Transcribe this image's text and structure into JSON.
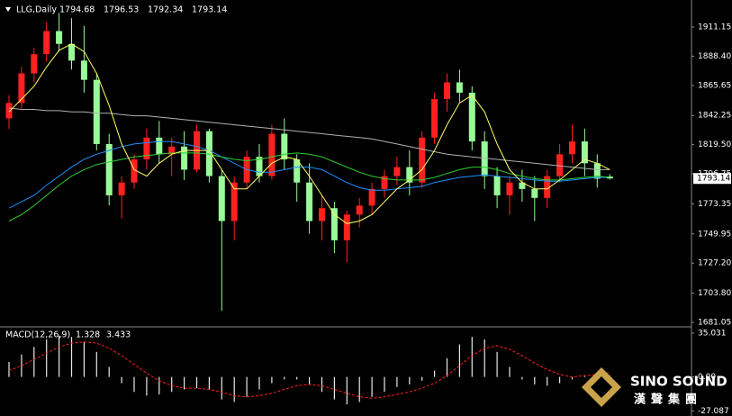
{
  "chart_data": [
    {
      "type": "candlestick",
      "title": "LLG,Daily",
      "header_values": [
        1794.68,
        1796.53,
        1792.34,
        1793.14
      ],
      "up_color": "#ff2020",
      "down_color": "#98fb98",
      "open": [
        1840,
        1852,
        1875,
        1890,
        1908,
        1898,
        1885,
        1870,
        1820,
        1780,
        1790,
        1808,
        1825,
        1812,
        1818,
        1800,
        1830,
        1795,
        1760,
        1790,
        1810,
        1795,
        1828,
        1808,
        1790,
        1760,
        1770,
        1745,
        1765,
        1772,
        1785,
        1795,
        1802,
        1790,
        1825,
        1855,
        1868,
        1860,
        1822,
        1795,
        1780,
        1790,
        1785,
        1778,
        1795,
        1812,
        1822,
        1805,
        1794.68
      ],
      "high": [
        1858,
        1880,
        1895,
        1915,
        1922,
        1918,
        1912,
        1875,
        1828,
        1795,
        1812,
        1832,
        1838,
        1825,
        1830,
        1835,
        1832,
        1800,
        1795,
        1815,
        1820,
        1835,
        1840,
        1812,
        1805,
        1780,
        1775,
        1768,
        1778,
        1790,
        1800,
        1810,
        1815,
        1830,
        1860,
        1875,
        1878,
        1865,
        1830,
        1802,
        1795,
        1800,
        1795,
        1800,
        1820,
        1835,
        1832,
        1812,
        1796.53
      ],
      "low": [
        1832,
        1848,
        1868,
        1884,
        1892,
        1878,
        1860,
        1815,
        1772,
        1762,
        1785,
        1800,
        1805,
        1795,
        1792,
        1798,
        1790,
        1690,
        1745,
        1785,
        1790,
        1792,
        1800,
        1775,
        1750,
        1745,
        1735,
        1728,
        1755,
        1765,
        1778,
        1788,
        1780,
        1786,
        1820,
        1845,
        1852,
        1815,
        1785,
        1770,
        1765,
        1775,
        1760,
        1770,
        1790,
        1805,
        1795,
        1786,
        1792.34
      ],
      "close": [
        1852,
        1875,
        1890,
        1908,
        1898,
        1885,
        1870,
        1820,
        1780,
        1790,
        1808,
        1825,
        1812,
        1818,
        1800,
        1830,
        1795,
        1760,
        1790,
        1810,
        1795,
        1828,
        1808,
        1790,
        1760,
        1770,
        1745,
        1765,
        1772,
        1785,
        1795,
        1802,
        1790,
        1825,
        1855,
        1868,
        1860,
        1822,
        1795,
        1780,
        1790,
        1785,
        1778,
        1795,
        1812,
        1822,
        1805,
        1793,
        1793.14
      ],
      "lines": [
        {
          "color": "#b0b0b0",
          "values": [
            1848,
            1847,
            1847,
            1846,
            1846,
            1845,
            1845,
            1844,
            1844,
            1843,
            1842,
            1842,
            1841,
            1840,
            1839,
            1838,
            1837,
            1836,
            1835,
            1834,
            1833,
            1832,
            1831,
            1830,
            1829,
            1828,
            1827,
            1826,
            1825,
            1824,
            1822,
            1820,
            1818,
            1816,
            1814,
            1812,
            1811,
            1810,
            1809,
            1808,
            1807,
            1806,
            1805,
            1804,
            1803,
            1802,
            1801,
            1800,
            1800
          ]
        },
        {
          "color": "#1e90ff",
          "values": [
            1770,
            1775,
            1780,
            1788,
            1795,
            1802,
            1808,
            1812,
            1815,
            1818,
            1820,
            1821,
            1822,
            1822,
            1820,
            1818,
            1815,
            1810,
            1805,
            1800,
            1798,
            1798,
            1800,
            1802,
            1802,
            1800,
            1795,
            1790,
            1786,
            1784,
            1784,
            1785,
            1786,
            1787,
            1790,
            1792,
            1794,
            1795,
            1796,
            1795,
            1794,
            1793,
            1792,
            1791,
            1791,
            1792,
            1793,
            1794,
            1794
          ]
        },
        {
          "color": "#32cd32",
          "values": [
            1760,
            1765,
            1772,
            1780,
            1788,
            1795,
            1800,
            1804,
            1806,
            1808,
            1810,
            1811,
            1812,
            1813,
            1813,
            1813,
            1812,
            1810,
            1808,
            1807,
            1808,
            1810,
            1812,
            1813,
            1812,
            1810,
            1806,
            1802,
            1798,
            1795,
            1793,
            1792,
            1792,
            1792,
            1794,
            1797,
            1800,
            1802,
            1802,
            1800,
            1797,
            1795,
            1793,
            1792,
            1792,
            1793,
            1794,
            1795,
            1794
          ]
        },
        {
          "color": "#ffff66",
          "values": [
            1845,
            1855,
            1865,
            1880,
            1893,
            1898,
            1892,
            1875,
            1850,
            1820,
            1800,
            1795,
            1805,
            1812,
            1815,
            1815,
            1815,
            1800,
            1785,
            1785,
            1795,
            1805,
            1810,
            1808,
            1795,
            1780,
            1765,
            1758,
            1760,
            1765,
            1775,
            1785,
            1792,
            1800,
            1815,
            1835,
            1852,
            1858,
            1845,
            1820,
            1800,
            1790,
            1785,
            1785,
            1792,
            1800,
            1808,
            1805,
            1800
          ]
        }
      ],
      "last_price": 1793.14,
      "ylim": [
        1678.25,
        1932.2
      ],
      "yticks": [
        1911.15,
        {
          "value": 1888.4,
          "label": "1888.40"
        },
        1865.65,
        1842.25,
        {
          "value": 1819.5,
          "label": "1819.50"
        },
        1796.75,
        1773.35,
        1749.95,
        {
          "value": 1727.2,
          "label": "1727.20"
        },
        {
          "value": 1703.8,
          "label": "1703.80"
        },
        1681.05
      ]
    },
    {
      "type": "macd",
      "title": "MACD(12,26,9)",
      "readout": [
        1.328,
        3.433
      ],
      "histogram_color": "#e8e8e8",
      "signal_color": "#ff2020",
      "histogram": [
        12,
        18,
        24,
        30,
        33,
        32,
        28,
        20,
        8,
        -5,
        -12,
        -15,
        -14,
        -12,
        -10,
        -9,
        -10,
        -18,
        -20,
        -16,
        -10,
        -5,
        -2,
        -2,
        -6,
        -12,
        -18,
        -22,
        -20,
        -16,
        -12,
        -8,
        -6,
        -3,
        5,
        15,
        26,
        32,
        30,
        20,
        8,
        -2,
        -6,
        -7,
        -5,
        -2,
        1,
        2,
        1.3
      ],
      "signal": [
        5,
        9,
        14,
        19,
        24,
        27,
        28,
        27,
        23,
        17,
        10,
        3,
        -3,
        -7,
        -9,
        -9,
        -10,
        -12,
        -15,
        -16,
        -15,
        -13,
        -10,
        -7,
        -6,
        -7,
        -10,
        -13,
        -16,
        -17,
        -16,
        -14,
        -12,
        -9,
        -5,
        1,
        9,
        17,
        23,
        25,
        22,
        17,
        11,
        6,
        2,
        0,
        1,
        2,
        3.4
      ],
      "ylim": [
        -30.5,
        39.3
      ],
      "yticks": [
        35.031,
        {
          "value": 0,
          "label": "0.00"
        },
        -27.087
      ]
    }
  ],
  "logo": {
    "name": "SINO SOUND",
    "subtitle": "漢聲集團"
  }
}
